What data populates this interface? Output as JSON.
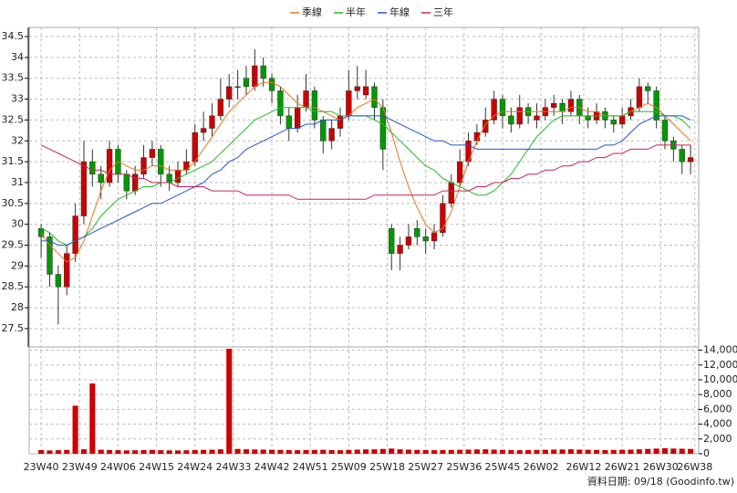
{
  "chart_data": {
    "type": "candlestick",
    "x": [
      0,
      2,
      4,
      6,
      8,
      10,
      12,
      14,
      16,
      18,
      20,
      22,
      24,
      26,
      28,
      30,
      32,
      34,
      36,
      38,
      40,
      42,
      44,
      46,
      48,
      50,
      52,
      54,
      56,
      58,
      60,
      62,
      64,
      66,
      68,
      70,
      72,
      74,
      76,
      78,
      80,
      82,
      84,
      86,
      88,
      90,
      92,
      94,
      96,
      98,
      100,
      102,
      104,
      106,
      108,
      110,
      112,
      114,
      116,
      118,
      120,
      122,
      124,
      126,
      128,
      130,
      132,
      134,
      136,
      138,
      140,
      142,
      144,
      146,
      148,
      150,
      152
    ],
    "xlim": [
      -2.8,
      153.9
    ],
    "xticks": [
      {
        "value": 0,
        "label": "23W40"
      },
      {
        "value": 9,
        "label": "23W49"
      },
      {
        "value": 18,
        "label": "24W06"
      },
      {
        "value": 27,
        "label": "24W15"
      },
      {
        "value": 36,
        "label": "24W24"
      },
      {
        "value": 45,
        "label": "24W33"
      },
      {
        "value": 54,
        "label": "24W42"
      },
      {
        "value": 63,
        "label": "24W51"
      },
      {
        "value": 72,
        "label": "25W09"
      },
      {
        "value": 81,
        "label": "25W18"
      },
      {
        "value": 90,
        "label": "25W27"
      },
      {
        "value": 99,
        "label": "25W36"
      },
      {
        "value": 108,
        "label": "25W45"
      },
      {
        "value": 117,
        "label": "26W02"
      },
      {
        "value": 127,
        "label": "26W12"
      },
      {
        "value": 136,
        "label": "26W21"
      },
      {
        "value": 145,
        "label": "26W30"
      },
      {
        "value": 153,
        "label": "26W38"
      }
    ],
    "open": [
      29.9,
      29.7,
      28.8,
      28.5,
      29.3,
      30.2,
      31.5,
      31.2,
      31.0,
      31.8,
      31.2,
      30.8,
      31.2,
      31.6,
      31.8,
      31.2,
      31.0,
      31.3,
      31.5,
      32.2,
      32.3,
      32.6,
      33.0,
      33.3,
      33.5,
      33.3,
      33.8,
      33.5,
      33.2,
      32.6,
      32.3,
      32.8,
      33.2,
      32.5,
      32.0,
      32.3,
      32.6,
      33.2,
      33.1,
      33.3,
      32.8,
      29.9,
      29.3,
      29.5,
      29.9,
      29.7,
      29.6,
      29.8,
      30.5,
      31.0,
      31.5,
      32.0,
      32.2,
      32.5,
      33.0,
      32.6,
      32.4,
      32.8,
      32.5,
      32.6,
      32.8,
      32.9,
      32.7,
      33.0,
      32.6,
      32.5,
      32.7,
      32.5,
      32.4,
      32.6,
      32.8,
      33.3,
      33.2,
      32.5,
      32.0,
      31.8,
      31.5
    ],
    "high": [
      30.0,
      29.8,
      29.0,
      29.5,
      30.5,
      32.0,
      31.8,
      31.4,
      32.0,
      31.9,
      31.3,
      31.4,
      31.9,
      32.0,
      31.9,
      31.4,
      31.5,
      31.8,
      32.4,
      32.7,
      32.9,
      33.5,
      33.6,
      33.7,
      33.8,
      34.2,
      34.0,
      33.6,
      33.3,
      32.8,
      33.1,
      33.6,
      33.3,
      32.6,
      32.5,
      32.8,
      33.7,
      33.8,
      33.7,
      33.4,
      33.0,
      30.0,
      29.7,
      30.0,
      30.1,
      29.9,
      30.0,
      30.7,
      31.2,
      31.8,
      32.2,
      32.4,
      32.8,
      33.2,
      33.1,
      32.8,
      33.1,
      32.9,
      32.9,
      33.0,
      33.1,
      33.0,
      33.2,
      33.1,
      32.8,
      32.9,
      32.8,
      32.6,
      32.8,
      33.0,
      33.5,
      33.4,
      33.3,
      32.6,
      32.1,
      31.9,
      31.9
    ],
    "low": [
      29.2,
      28.5,
      27.6,
      28.3,
      29.1,
      30.0,
      30.9,
      30.6,
      30.9,
      31.0,
      30.6,
      30.7,
      31.1,
      31.4,
      30.9,
      30.8,
      30.9,
      31.2,
      31.4,
      32.0,
      32.1,
      32.5,
      32.8,
      33.0,
      33.1,
      33.2,
      33.3,
      32.9,
      32.4,
      32.0,
      32.2,
      32.7,
      32.3,
      31.7,
      31.8,
      32.1,
      32.5,
      33.0,
      33.0,
      32.5,
      31.3,
      28.9,
      28.9,
      29.4,
      29.5,
      29.3,
      29.4,
      29.7,
      30.4,
      30.9,
      31.4,
      31.9,
      32.1,
      32.4,
      32.3,
      32.2,
      32.3,
      32.4,
      32.3,
      32.5,
      32.6,
      32.4,
      32.6,
      32.4,
      32.3,
      32.4,
      32.3,
      32.2,
      32.3,
      32.5,
      32.7,
      32.9,
      32.3,
      31.8,
      31.5,
      31.2,
      31.2
    ],
    "close": [
      29.7,
      28.8,
      28.5,
      29.3,
      30.2,
      31.5,
      31.2,
      31.0,
      31.8,
      31.2,
      30.8,
      31.2,
      31.6,
      31.8,
      31.2,
      31.0,
      31.3,
      31.5,
      32.2,
      32.3,
      32.6,
      33.0,
      33.3,
      33.3,
      33.3,
      33.8,
      33.5,
      33.2,
      32.6,
      32.3,
      32.8,
      33.2,
      32.5,
      32.0,
      32.3,
      32.6,
      33.2,
      33.3,
      33.3,
      32.8,
      31.8,
      29.3,
      29.5,
      29.7,
      29.7,
      29.6,
      29.8,
      30.5,
      31.0,
      31.5,
      32.0,
      32.2,
      32.5,
      33.0,
      32.6,
      32.4,
      32.8,
      32.6,
      32.6,
      32.8,
      32.9,
      32.7,
      33.0,
      32.6,
      32.5,
      32.7,
      32.5,
      32.4,
      32.6,
      32.8,
      33.3,
      33.2,
      32.5,
      32.0,
      31.8,
      31.5,
      31.6
    ],
    "up_color": "#cc0000",
    "down_color": "#009900",
    "ylim": [
      27.06,
      34.72
    ],
    "yticks": [
      27.5,
      28,
      28.5,
      29,
      29.5,
      30,
      30.5,
      31,
      31.5,
      32,
      32.5,
      33,
      33.5,
      34,
      34.5
    ],
    "grid": true,
    "series": [
      {
        "name": "季線",
        "color": "#e8741c",
        "values": [
          29.8,
          29.5,
          29.3,
          29.1,
          29.2,
          29.6,
          30.2,
          30.8,
          31.3,
          31.5,
          31.4,
          31.3,
          31.3,
          31.4,
          31.4,
          31.3,
          31.3,
          31.3,
          31.5,
          31.8,
          32.1,
          32.4,
          32.7,
          32.9,
          33.1,
          33.3,
          33.4,
          33.4,
          33.3,
          33.1,
          32.9,
          32.8,
          32.8,
          32.7,
          32.6,
          32.5,
          32.6,
          32.8,
          32.9,
          33.0,
          32.8,
          32.2,
          31.5,
          30.9,
          30.4,
          30.0,
          29.8,
          29.9,
          30.3,
          30.9,
          31.5,
          32.0,
          32.4,
          32.6,
          32.7,
          32.7,
          32.7,
          32.7,
          32.7,
          32.7,
          32.7,
          32.7,
          32.8,
          32.8,
          32.7,
          32.7,
          32.6,
          32.6,
          32.6,
          32.7,
          32.8,
          32.9,
          32.8,
          32.6,
          32.4,
          32.2,
          32.0
        ]
      },
      {
        "name": "半年",
        "color": "#22bb22",
        "values": [
          29.9,
          29.8,
          29.6,
          29.5,
          29.6,
          29.7,
          29.9,
          30.2,
          30.4,
          30.6,
          30.7,
          30.8,
          30.9,
          30.9,
          31.0,
          31.0,
          31.1,
          31.2,
          31.3,
          31.4,
          31.5,
          31.7,
          31.9,
          32.1,
          32.3,
          32.5,
          32.6,
          32.7,
          32.8,
          32.8,
          32.8,
          32.8,
          32.7,
          32.7,
          32.7,
          32.6,
          32.6,
          32.6,
          32.6,
          32.5,
          32.4,
          32.2,
          32.0,
          31.8,
          31.6,
          31.4,
          31.3,
          31.1,
          31.0,
          30.9,
          30.8,
          30.7,
          30.7,
          30.8,
          31.0,
          31.2,
          31.5,
          31.8,
          32.1,
          32.3,
          32.5,
          32.6,
          32.6,
          32.6,
          32.6,
          32.6,
          32.6,
          32.6,
          32.6,
          32.7,
          32.7,
          32.7,
          32.7,
          32.6,
          32.6,
          32.5,
          32.3
        ]
      },
      {
        "name": "年線",
        "color": "#2255cc",
        "values": [
          29.6,
          29.6,
          29.5,
          29.5,
          29.6,
          29.7,
          29.8,
          29.9,
          30.0,
          30.1,
          30.2,
          30.3,
          30.4,
          30.5,
          30.5,
          30.6,
          30.7,
          30.8,
          30.9,
          31.0,
          31.2,
          31.3,
          31.5,
          31.6,
          31.8,
          31.9,
          32.0,
          32.1,
          32.2,
          32.3,
          32.3,
          32.4,
          32.4,
          32.5,
          32.5,
          32.5,
          32.6,
          32.6,
          32.6,
          32.6,
          32.6,
          32.5,
          32.4,
          32.3,
          32.2,
          32.1,
          32.0,
          32.0,
          31.9,
          31.9,
          31.9,
          31.8,
          31.8,
          31.8,
          31.8,
          31.8,
          31.8,
          31.8,
          31.8,
          31.8,
          31.8,
          31.8,
          31.8,
          31.8,
          31.8,
          31.8,
          31.9,
          31.9,
          32.0,
          32.2,
          32.4,
          32.5,
          32.6,
          32.6,
          32.6,
          32.6,
          32.5
        ]
      },
      {
        "name": "三年",
        "color": "#cc2255",
        "values": [
          31.9,
          31.8,
          31.7,
          31.6,
          31.5,
          31.4,
          31.3,
          31.3,
          31.2,
          31.2,
          31.2,
          31.1,
          31.1,
          31.0,
          31.0,
          31.0,
          30.9,
          30.9,
          30.9,
          30.9,
          30.8,
          30.8,
          30.8,
          30.8,
          30.7,
          30.7,
          30.7,
          30.7,
          30.7,
          30.7,
          30.6,
          30.6,
          30.6,
          30.6,
          30.6,
          30.6,
          30.6,
          30.6,
          30.6,
          30.7,
          30.7,
          30.7,
          30.7,
          30.7,
          30.7,
          30.7,
          30.7,
          30.8,
          30.8,
          30.8,
          30.8,
          30.9,
          30.9,
          31.0,
          31.0,
          31.1,
          31.1,
          31.2,
          31.2,
          31.3,
          31.3,
          31.4,
          31.4,
          31.5,
          31.5,
          31.6,
          31.6,
          31.7,
          31.7,
          31.8,
          31.8,
          31.8,
          31.9,
          31.9,
          31.9,
          31.9,
          31.9
        ]
      }
    ],
    "volume": {
      "color": "#cc0000",
      "values": [
        500,
        450,
        480,
        520,
        6500,
        600,
        9500,
        550,
        500,
        480,
        450,
        470,
        500,
        520,
        480,
        460,
        450,
        470,
        500,
        520,
        550,
        600,
        14200,
        650,
        600,
        580,
        560,
        540,
        520,
        500,
        480,
        500,
        520,
        540,
        500,
        480,
        520,
        560,
        580,
        600,
        650,
        700,
        600,
        550,
        520,
        500,
        480,
        500,
        520,
        540,
        560,
        580,
        600,
        560,
        520,
        500,
        480,
        500,
        520,
        540,
        560,
        580,
        600,
        560,
        540,
        520,
        500,
        520,
        540,
        560,
        600,
        650,
        700,
        750,
        700,
        680,
        650
      ],
      "ylim": [
        0,
        14200
      ],
      "yticks": [
        0,
        {
          "value": 2000,
          "label": "2,000"
        },
        {
          "value": 4000,
          "label": "4,000"
        },
        {
          "value": 6000,
          "label": "6,000"
        },
        {
          "value": 8000,
          "label": "8,000"
        },
        {
          "value": 10000,
          "label": "10,000"
        },
        {
          "value": 12000,
          "label": "12,000"
        },
        {
          "value": 14000,
          "label": "14,000"
        }
      ]
    }
  },
  "footer": "資料日期: 09/18  (Goodinfo.tw)"
}
